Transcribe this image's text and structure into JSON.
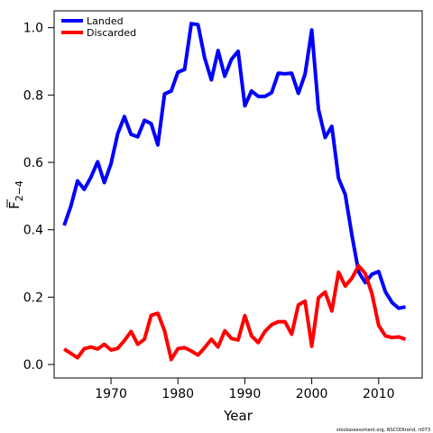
{
  "chart_data": {
    "type": "line",
    "xlabel": "Year",
    "ylabel": "F̄2-4",
    "ylabel_main": "F",
    "ylabel_sub": "2−4",
    "xlim": [
      1961.5,
      2016.5
    ],
    "ylim": [
      -0.04,
      1.05
    ],
    "xticks": [
      1970,
      1980,
      1990,
      2000,
      2010
    ],
    "yticks": [
      0.0,
      0.2,
      0.4,
      0.6,
      0.8,
      1.0
    ],
    "ytick_labels": [
      "0.0",
      "0.2",
      "0.4",
      "0.6",
      "0.8",
      "1.0"
    ],
    "grid": false,
    "legend_position": "top-left",
    "x": [
      1963,
      1964,
      1965,
      1966,
      1967,
      1968,
      1969,
      1970,
      1971,
      1972,
      1973,
      1974,
      1975,
      1976,
      1977,
      1978,
      1979,
      1980,
      1981,
      1982,
      1983,
      1984,
      1985,
      1986,
      1987,
      1988,
      1989,
      1990,
      1991,
      1992,
      1993,
      1994,
      1995,
      1996,
      1997,
      1998,
      1999,
      2000,
      2001,
      2002,
      2003,
      2004,
      2005,
      2006,
      2007,
      2008,
      2009,
      2010,
      2011,
      2012,
      2013,
      2014
    ],
    "series": [
      {
        "name": "Landed",
        "color": "#0000ff",
        "values": [
          0.413,
          0.47,
          0.545,
          0.52,
          0.556,
          0.602,
          0.54,
          0.596,
          0.685,
          0.736,
          0.683,
          0.676,
          0.725,
          0.715,
          0.652,
          0.803,
          0.812,
          0.868,
          0.876,
          1.012,
          1.009,
          0.91,
          0.845,
          0.932,
          0.856,
          0.906,
          0.93,
          0.768,
          0.812,
          0.796,
          0.796,
          0.807,
          0.865,
          0.863,
          0.865,
          0.805,
          0.862,
          0.993,
          0.758,
          0.674,
          0.707,
          0.553,
          0.505,
          0.384,
          0.275,
          0.243,
          0.268,
          0.276,
          0.216,
          0.184,
          0.167,
          0.171
        ]
      },
      {
        "name": "Discarded",
        "color": "#ff0000",
        "values": [
          0.046,
          0.033,
          0.02,
          0.047,
          0.052,
          0.046,
          0.06,
          0.043,
          0.048,
          0.071,
          0.098,
          0.06,
          0.075,
          0.146,
          0.152,
          0.1,
          0.015,
          0.047,
          0.05,
          0.04,
          0.028,
          0.05,
          0.075,
          0.052,
          0.1,
          0.077,
          0.073,
          0.145,
          0.085,
          0.065,
          0.098,
          0.118,
          0.127,
          0.127,
          0.09,
          0.177,
          0.188,
          0.054,
          0.198,
          0.215,
          0.159,
          0.274,
          0.233,
          0.256,
          0.293,
          0.27,
          0.21,
          0.116,
          0.085,
          0.08,
          0.082,
          0.075
        ]
      }
    ]
  },
  "credit": "stockassessment.org, NSCODtrend, rt073"
}
